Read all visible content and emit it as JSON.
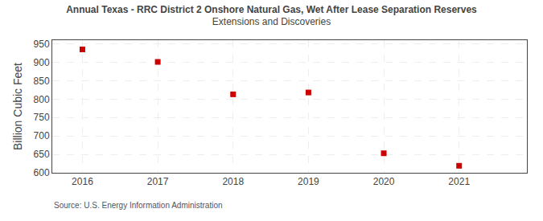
{
  "chart_data": {
    "type": "scatter",
    "title": "Annual Texas - RRC District 2 Onshore Natural Gas, Wet After Lease Separation Reserves",
    "subtitle": "Extensions and Discoveries",
    "ylabel": "Billion Cubic Feet",
    "annotations": [
      "Source: U.S. Energy Information Administration"
    ],
    "x": [
      2016,
      2017,
      2018,
      2019,
      2020,
      2021
    ],
    "values": [
      935,
      901,
      813,
      818,
      653,
      619
    ],
    "color": "#cc0000",
    "marker": "square",
    "xlim": [
      2015.6,
      2021.9
    ],
    "xticks": [
      2016,
      2017,
      2018,
      2019,
      2020,
      2021
    ],
    "ylim": [
      600,
      960
    ],
    "yticks": [
      600,
      650,
      700,
      750,
      800,
      850,
      900,
      950
    ],
    "grid": true
  }
}
